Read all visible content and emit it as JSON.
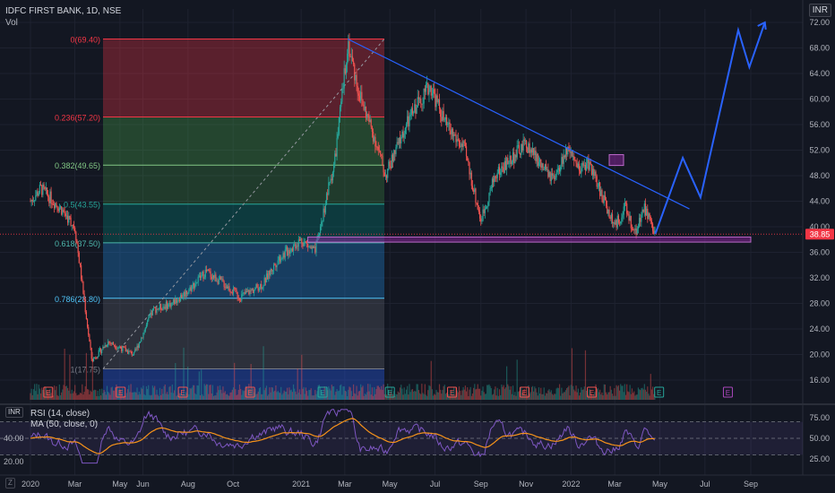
{
  "header": {
    "symbol": "IDFC FIRST BANK, 1D, NSE",
    "volume_label": "Vol",
    "unit_label": "INR",
    "rsi_unit_label": "INR",
    "zone_label": "Z"
  },
  "rsi_panel": {
    "title": "RSI (14, close)",
    "ma_title": "MA (50, close, 0)",
    "ticks": [
      "75.00",
      "50.00",
      "25.00"
    ],
    "left_ticks": [
      "40.00",
      "20.00"
    ],
    "upper_band": 70,
    "lower_band": 30,
    "mid_line": 50
  },
  "colors": {
    "background": "#131722",
    "grid": "#1e2230",
    "candle_up": "#26a69a",
    "candle_down": "#ef5350",
    "trendline": "#2962ff",
    "support_zone": "#9c27b0",
    "rsi_line": "#7e57c2",
    "rsi_ma": "#f7931a",
    "price_label_bg": "#f23645"
  },
  "chart_data": {
    "type": "candlestick",
    "title": "IDFC FIRST BANK, 1D, NSE",
    "ylabel": "INR",
    "ylim": [
      14,
      73
    ],
    "price_ticks": [
      "72.00",
      "68.00",
      "64.00",
      "60.00",
      "56.00",
      "52.00",
      "48.00",
      "44.00",
      "40.00",
      "36.00",
      "32.00",
      "28.00",
      "24.00",
      "20.00",
      "16.00"
    ],
    "x_ticks": [
      "2020",
      "Mar",
      "May",
      "Jun",
      "Aug",
      "Oct",
      "2021",
      "Mar",
      "May",
      "Jul",
      "Sep",
      "Nov",
      "2022",
      "Mar",
      "May",
      "Jul",
      "Sep"
    ],
    "last_price": "38.85",
    "fibonacci": [
      {
        "label": "0(69.40)",
        "level": 69.4
      },
      {
        "label": "0.236(57.20)",
        "level": 57.2
      },
      {
        "label": "0.382(49.65)",
        "level": 49.65
      },
      {
        "label": "0.5(43.55)",
        "level": 43.55
      },
      {
        "label": "0.618(37.50)",
        "level": 37.5
      },
      {
        "label": "0.786(28.80)",
        "level": 28.8
      },
      {
        "label": "1(17.75)",
        "level": 17.75
      }
    ],
    "earnings_marker": "E",
    "support_zone": [
      37.6,
      38.4
    ],
    "trendline": {
      "from": [
        {
          "x": "2021-03-05",
          "y": 69.4
        }
      ],
      "to": [
        {
          "x": "2022-06-10",
          "y": 42.8
        }
      ]
    },
    "projection": [
      {
        "x": "2022-04-25",
        "y": 38.9
      },
      {
        "x": "2022-06-01",
        "y": 50.8
      },
      {
        "x": "2022-06-25",
        "y": 44.6
      },
      {
        "x": "2022-08-15",
        "y": 70.8
      },
      {
        "x": "2022-08-30",
        "y": 65.0
      },
      {
        "x": "2022-09-20",
        "y": 72.0
      }
    ]
  }
}
